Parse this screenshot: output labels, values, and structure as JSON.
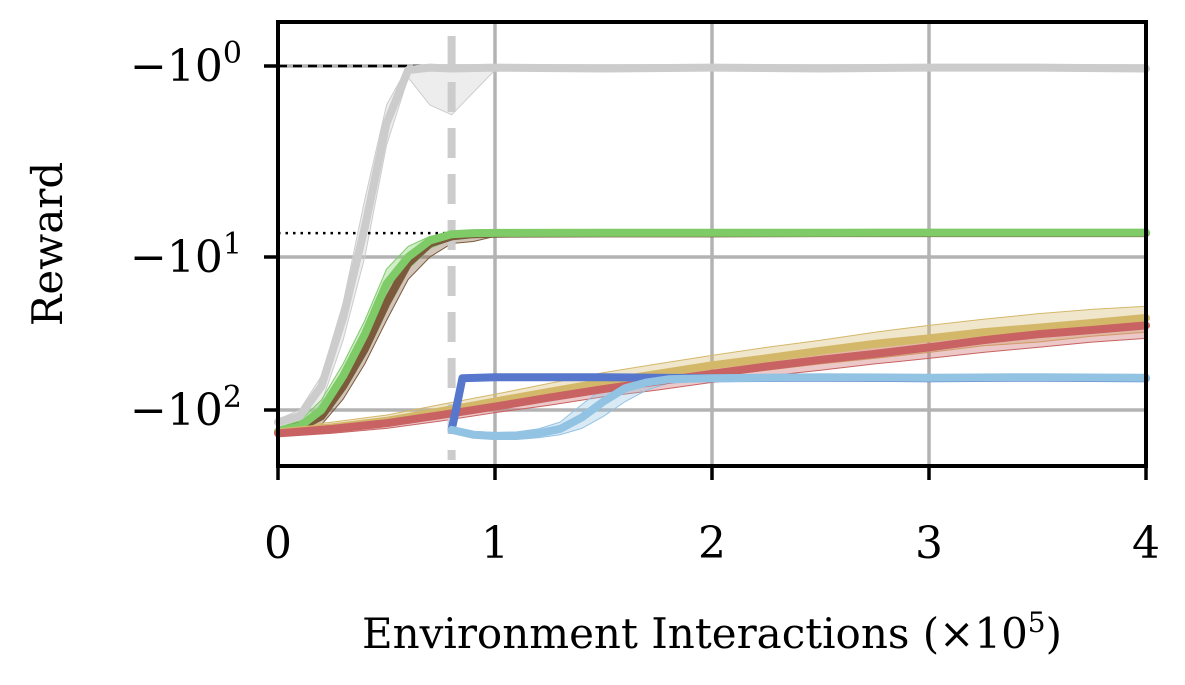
{
  "chart_data": {
    "type": "line",
    "title": "",
    "xlabel": "Environment Interactions (×10",
    "xlabel_exponent": "5",
    "xlabel_close": ")",
    "ylabel": "Reward",
    "xlim": [
      0,
      4
    ],
    "ylim": [
      -170,
      -0.7
    ],
    "yscale": "symlog-negative",
    "grid": true,
    "legend": "none",
    "x_ticks": [
      {
        "value": 0,
        "label": "0"
      },
      {
        "value": 1,
        "label": "1"
      },
      {
        "value": 2,
        "label": "2"
      },
      {
        "value": 3,
        "label": "3"
      },
      {
        "value": 4,
        "label": "4"
      }
    ],
    "y_ticks": [
      {
        "value": -1,
        "base": "−10",
        "exp": "0"
      },
      {
        "value": -10,
        "base": "−10",
        "exp": "1"
      },
      {
        "value": -100,
        "base": "−10",
        "exp": "2"
      }
    ],
    "reference_lines": [
      {
        "orientation": "horizontal",
        "value": -1,
        "style": "dashed",
        "color": "#000000"
      },
      {
        "orientation": "horizontal",
        "value": -7.5,
        "style": "dotted",
        "color": "#000000"
      },
      {
        "orientation": "vertical",
        "value": 0.8,
        "style": "dashed",
        "color": "#cccccc"
      }
    ],
    "series": [
      {
        "color": "#cccccc",
        "x": [
          0,
          0.1,
          0.2,
          0.3,
          0.4,
          0.5,
          0.6,
          0.7,
          0.8,
          1.0,
          1.5,
          2.0,
          2.5,
          3.0,
          3.5,
          4.0
        ],
        "y": [
          -120,
          -110,
          -70,
          -25,
          -7,
          -2.0,
          -1.05,
          -1.02,
          -1.03,
          -1.02,
          -1.03,
          -1.02,
          -1.03,
          -1.02,
          -1.02,
          -1.03
        ],
        "band_low": [
          -130,
          -125,
          -90,
          -35,
          -10,
          -2.6,
          -1.15,
          -1.6,
          -1.8,
          -1.05,
          -1.05,
          -1.04,
          -1.04,
          -1.03,
          -1.04,
          -1.05
        ],
        "band_high": [
          -115,
          -100,
          -60,
          -20,
          -5,
          -1.6,
          -1.0,
          -1.0,
          -1.0,
          -1.0,
          -1.0,
          -1.0,
          -1.0,
          -1.0,
          -1.0,
          -1.0
        ]
      },
      {
        "color": "#7a5a3a",
        "x": [
          0,
          0.1,
          0.2,
          0.3,
          0.4,
          0.5,
          0.6,
          0.7,
          0.8,
          0.9,
          1.0,
          1.5,
          2.0,
          2.5,
          3.0,
          3.5,
          4.0
        ],
        "y": [
          -140,
          -130,
          -110,
          -70,
          -40,
          -20,
          -11,
          -8.5,
          -7.8,
          -7.6,
          -7.55,
          -7.52,
          -7.52,
          -7.5,
          -7.5,
          -7.5,
          -7.5
        ],
        "band_low": [
          -150,
          -140,
          -125,
          -85,
          -50,
          -26,
          -14,
          -10,
          -8.5,
          -8.3,
          -7.8,
          -7.7,
          -7.7,
          -7.7,
          -7.7,
          -7.7,
          -7.7
        ],
        "band_high": [
          -130,
          -120,
          -95,
          -58,
          -32,
          -16,
          -9.5,
          -8.0,
          -7.5,
          -7.4,
          -7.4,
          -7.4,
          -7.4,
          -7.4,
          -7.4,
          -7.4,
          -7.4
        ]
      },
      {
        "color": "#7ecb68",
        "x": [
          0,
          0.1,
          0.2,
          0.3,
          0.4,
          0.5,
          0.6,
          0.7,
          0.8,
          0.9,
          1.0,
          1.5,
          2.0,
          2.5,
          3.0,
          3.5,
          4.0
        ],
        "y": [
          -138,
          -128,
          -100,
          -60,
          -32,
          -15,
          -10,
          -8.2,
          -7.6,
          -7.5,
          -7.48,
          -7.46,
          -7.46,
          -7.46,
          -7.45,
          -7.45,
          -7.45
        ],
        "band_low": [
          -145,
          -138,
          -115,
          -72,
          -40,
          -19,
          -12,
          -9,
          -8.1,
          -7.8,
          -7.7,
          -7.7,
          -7.8,
          -7.7,
          -7.7,
          -7.7,
          -7.7
        ],
        "band_high": [
          -130,
          -118,
          -86,
          -50,
          -26,
          -12,
          -8.8,
          -7.8,
          -7.4,
          -7.3,
          -7.3,
          -7.3,
          -7.3,
          -7.3,
          -7.3,
          -7.3,
          -7.3
        ]
      },
      {
        "color": "#d4b86a",
        "x": [
          0,
          0.25,
          0.5,
          0.75,
          1.0,
          1.25,
          1.5,
          1.75,
          2.0,
          2.25,
          2.5,
          2.75,
          3.0,
          3.25,
          3.5,
          3.75,
          4.0
        ],
        "y": [
          -140,
          -130,
          -118,
          -102,
          -88,
          -76,
          -66,
          -58,
          -51,
          -46,
          -41,
          -37,
          -34,
          -31,
          -29,
          -27,
          -25
        ],
        "band_low": [
          -148,
          -140,
          -128,
          -112,
          -98,
          -86,
          -76,
          -67,
          -60,
          -55,
          -50,
          -46,
          -42,
          -38,
          -36,
          -33,
          -31
        ],
        "band_high": [
          -132,
          -120,
          -108,
          -92,
          -79,
          -67,
          -57,
          -50,
          -44,
          -39,
          -35,
          -31,
          -28,
          -25.5,
          -23.5,
          -22,
          -21
        ]
      },
      {
        "color": "#c96262",
        "x": [
          0,
          0.25,
          0.5,
          0.75,
          1.0,
          1.25,
          1.5,
          1.75,
          2.0,
          2.25,
          2.5,
          2.75,
          3.0,
          3.25,
          3.5,
          3.75,
          4.0
        ],
        "y": [
          -142,
          -133,
          -122,
          -108,
          -95,
          -83,
          -73,
          -65,
          -58,
          -52,
          -47,
          -43,
          -39,
          -35,
          -32,
          -30,
          -28
        ],
        "band_low": [
          -150,
          -142,
          -132,
          -118,
          -104,
          -93,
          -82,
          -74,
          -66,
          -60,
          -55,
          -50,
          -46,
          -42,
          -39,
          -36,
          -34
        ],
        "band_high": [
          -134,
          -124,
          -112,
          -98,
          -86,
          -74,
          -65,
          -58,
          -51,
          -46,
          -41,
          -37,
          -34,
          -31,
          -28,
          -26,
          -24
        ]
      },
      {
        "color": "#5677cc",
        "x": [
          0.8,
          0.82,
          0.85,
          1.0,
          1.5,
          2.0,
          2.5,
          3.0,
          3.5,
          4.0
        ],
        "y": [
          -135,
          -100,
          -62,
          -61,
          -61,
          -62,
          -61.5,
          -62,
          -61.5,
          -62
        ],
        "band_low": [
          -140,
          -105,
          -64,
          -63,
          -63,
          -64,
          -64,
          -64,
          -64,
          -64
        ],
        "band_high": [
          -130,
          -95,
          -60,
          -59,
          -59,
          -60,
          -59.5,
          -60,
          -59.5,
          -60
        ]
      },
      {
        "color": "#93c3e3",
        "x": [
          0.8,
          0.9,
          1.0,
          1.1,
          1.2,
          1.3,
          1.4,
          1.5,
          1.6,
          1.7,
          1.8,
          2.0,
          2.5,
          3.0,
          3.5,
          4.0
        ],
        "y": [
          -135,
          -145,
          -148,
          -147,
          -142,
          -133,
          -112,
          -88,
          -72,
          -66,
          -63,
          -62,
          -61,
          -61.5,
          -61,
          -61.5
        ],
        "band_low": [
          -140,
          -152,
          -156,
          -156,
          -152,
          -145,
          -132,
          -110,
          -88,
          -74,
          -67,
          -64,
          -63,
          -63.5,
          -63,
          -63.5
        ],
        "band_high": [
          -130,
          -138,
          -140,
          -139,
          -133,
          -120,
          -92,
          -72,
          -64,
          -61,
          -60,
          -60,
          -59,
          -59.5,
          -59,
          -59.5
        ]
      }
    ]
  }
}
